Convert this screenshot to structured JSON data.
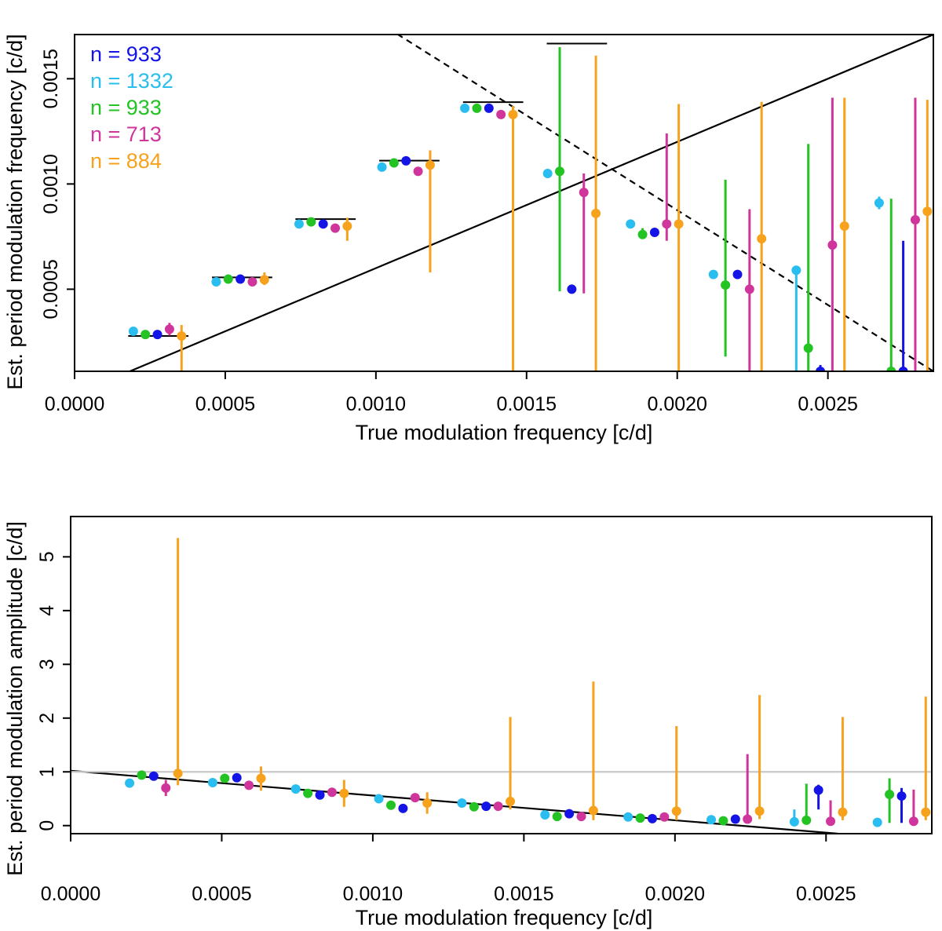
{
  "chart_data": [
    {
      "type": "scatter",
      "title": "",
      "xlabel": "True modulation frequency [c/d]",
      "ylabel": "Est. period modulation frequency [c/d]",
      "xlim": [
        0,
        0.00285
      ],
      "ylim": [
        0.00011,
        0.00171
      ],
      "xticks": [
        "0.0000",
        "0.0005",
        "0.0010",
        "0.0015",
        "0.0020",
        "0.0025"
      ],
      "xtick_values": [
        0,
        0.0005,
        0.001,
        0.0015,
        0.002,
        0.0025
      ],
      "yticks": [
        "0.0005",
        "0.0010",
        "0.0015"
      ],
      "ytick_values": [
        0.0005,
        0.001,
        0.0015
      ],
      "legend_position": "top-left",
      "legend": [
        {
          "label": "n = 933",
          "color": "#1414e6"
        },
        {
          "label": "n = 1332",
          "color": "#29bdf0"
        },
        {
          "label": "n = 933",
          "color": "#22c322"
        },
        {
          "label": "n = 713",
          "color": "#d0359c"
        },
        {
          "label": "n = 884",
          "color": "#f7a21c"
        }
      ],
      "lines": [
        {
          "style": "solid",
          "color": "#000000",
          "x": [
            0,
            0.00285
          ],
          "y": [
            0,
            0.00171
          ]
        },
        {
          "style": "dashed",
          "color": "#000000",
          "x": [
            0.00104,
            0.00285
          ],
          "y": [
            0.00174,
            0.00011
          ]
        }
      ],
      "true_markers": [
        {
          "x": 0.000278,
          "y": 0.000278
        },
        {
          "x": 0.000556,
          "y": 0.000556
        },
        {
          "x": 0.000833,
          "y": 0.000833
        },
        {
          "x": 0.001111,
          "y": 0.001111
        },
        {
          "x": 0.001389,
          "y": 0.001389
        },
        {
          "x": 0.001667,
          "y": 0.001667
        }
      ],
      "points": [
        {
          "color": "#29bdf0",
          "x": 0.000195,
          "y": 0.0003
        },
        {
          "color": "#22c322",
          "x": 0.000235,
          "y": 0.000285
        },
        {
          "color": "#1414e6",
          "x": 0.000275,
          "y": 0.000285
        },
        {
          "color": "#d0359c",
          "x": 0.000315,
          "y": 0.00031,
          "lo": 0.00028,
          "hi": 0.00034
        },
        {
          "color": "#f7a21c",
          "x": 0.000355,
          "y": 0.000278,
          "lo": 0.00011,
          "hi": 0.00033
        },
        {
          "color": "#29bdf0",
          "x": 0.00047,
          "y": 0.000535
        },
        {
          "color": "#22c322",
          "x": 0.00051,
          "y": 0.000548
        },
        {
          "color": "#1414e6",
          "x": 0.00055,
          "y": 0.000548
        },
        {
          "color": "#d0359c",
          "x": 0.00059,
          "y": 0.000535
        },
        {
          "color": "#f7a21c",
          "x": 0.00063,
          "y": 0.000545,
          "lo": 0.00052,
          "hi": 0.00058
        },
        {
          "color": "#29bdf0",
          "x": 0.000745,
          "y": 0.00081
        },
        {
          "color": "#22c322",
          "x": 0.000785,
          "y": 0.00082
        },
        {
          "color": "#1414e6",
          "x": 0.000825,
          "y": 0.00081
        },
        {
          "color": "#d0359c",
          "x": 0.000865,
          "y": 0.00079
        },
        {
          "color": "#f7a21c",
          "x": 0.000905,
          "y": 0.0008,
          "lo": 0.00073,
          "hi": 0.00084
        },
        {
          "color": "#29bdf0",
          "x": 0.00102,
          "y": 0.00108
        },
        {
          "color": "#22c322",
          "x": 0.00106,
          "y": 0.0011
        },
        {
          "color": "#1414e6",
          "x": 0.0011,
          "y": 0.00111
        },
        {
          "color": "#d0359c",
          "x": 0.00114,
          "y": 0.00106
        },
        {
          "color": "#f7a21c",
          "x": 0.00118,
          "y": 0.00109,
          "lo": 0.00058,
          "hi": 0.00116
        },
        {
          "color": "#29bdf0",
          "x": 0.001295,
          "y": 0.00136
        },
        {
          "color": "#22c322",
          "x": 0.001335,
          "y": 0.00136
        },
        {
          "color": "#1414e6",
          "x": 0.001375,
          "y": 0.00136
        },
        {
          "color": "#d0359c",
          "x": 0.001415,
          "y": 0.00133
        },
        {
          "color": "#f7a21c",
          "x": 0.001455,
          "y": 0.00133,
          "lo": 0.00011,
          "hi": 0.00137
        },
        {
          "color": "#29bdf0",
          "x": 0.00157,
          "y": 0.00105
        },
        {
          "color": "#22c322",
          "x": 0.00161,
          "y": 0.00106,
          "lo": 0.00049,
          "hi": 0.00165
        },
        {
          "color": "#1414e6",
          "x": 0.00165,
          "y": 0.0005
        },
        {
          "color": "#d0359c",
          "x": 0.00169,
          "y": 0.00096,
          "lo": 0.00048,
          "hi": 0.00105
        },
        {
          "color": "#f7a21c",
          "x": 0.00173,
          "y": 0.00086,
          "lo": 0.00011,
          "hi": 0.00161
        },
        {
          "color": "#29bdf0",
          "x": 0.001845,
          "y": 0.00081
        },
        {
          "color": "#22c322",
          "x": 0.001885,
          "y": 0.00076,
          "lo": 0.00074,
          "hi": 0.00079
        },
        {
          "color": "#1414e6",
          "x": 0.001925,
          "y": 0.00077
        },
        {
          "color": "#d0359c",
          "x": 0.001965,
          "y": 0.00081,
          "lo": 0.00073,
          "hi": 0.00124
        },
        {
          "color": "#f7a21c",
          "x": 0.002005,
          "y": 0.00081,
          "lo": 0.00011,
          "hi": 0.00138
        },
        {
          "color": "#29bdf0",
          "x": 0.00212,
          "y": 0.00057
        },
        {
          "color": "#22c322",
          "x": 0.00216,
          "y": 0.00052,
          "lo": 0.00018,
          "hi": 0.00102
        },
        {
          "color": "#1414e6",
          "x": 0.0022,
          "y": 0.00057
        },
        {
          "color": "#d0359c",
          "x": 0.00224,
          "y": 0.0005,
          "lo": 0.00011,
          "hi": 0.00088
        },
        {
          "color": "#f7a21c",
          "x": 0.00228,
          "y": 0.00074,
          "lo": 0.00011,
          "hi": 0.00139
        },
        {
          "color": "#29bdf0",
          "x": 0.002395,
          "y": 0.00059,
          "lo": 0.00011,
          "hi": 0.00059
        },
        {
          "color": "#22c322",
          "x": 0.002435,
          "y": 0.00022,
          "lo": 0.00011,
          "hi": 0.00119
        },
        {
          "color": "#1414e6",
          "x": 0.002475,
          "y": 0.00011,
          "lo": 0.00011,
          "hi": 0.00014
        },
        {
          "color": "#d0359c",
          "x": 0.002515,
          "y": 0.00071,
          "lo": 0.00011,
          "hi": 0.00141
        },
        {
          "color": "#f7a21c",
          "x": 0.002555,
          "y": 0.0008,
          "lo": 0.00011,
          "hi": 0.00141
        },
        {
          "color": "#29bdf0",
          "x": 0.00267,
          "y": 0.00091,
          "lo": 0.00088,
          "hi": 0.00094
        },
        {
          "color": "#22c322",
          "x": 0.00271,
          "y": 0.00011,
          "lo": 0.00011,
          "hi": 0.00093
        },
        {
          "color": "#1414e6",
          "x": 0.00275,
          "y": 0.00011,
          "lo": 0.00011,
          "hi": 0.00073
        },
        {
          "color": "#d0359c",
          "x": 0.00279,
          "y": 0.00083,
          "lo": 0.00011,
          "hi": 0.00141
        },
        {
          "color": "#f7a21c",
          "x": 0.00283,
          "y": 0.00087,
          "lo": 0.00011,
          "hi": 0.0014
        }
      ]
    },
    {
      "type": "scatter",
      "title": "",
      "xlabel": "True modulation frequency [c/d]",
      "ylabel": "Est. period modulation amplitude [c/d]",
      "xlim": [
        0,
        0.00285
      ],
      "ylim": [
        -0.15,
        5.75
      ],
      "xticks": [
        "0.0000",
        "0.0005",
        "0.0010",
        "0.0015",
        "0.0020",
        "0.0025"
      ],
      "xtick_values": [
        0,
        0.0005,
        0.001,
        0.0015,
        0.002,
        0.0025
      ],
      "yticks": [
        "0",
        "1",
        "2",
        "3",
        "4",
        "5"
      ],
      "ytick_values": [
        0,
        1,
        2,
        3,
        4,
        5
      ],
      "lines": [
        {
          "style": "solid",
          "color": "#000000",
          "x": [
            0,
            0.00254
          ],
          "y": [
            1.02,
            -0.15
          ]
        },
        {
          "style": "solid",
          "color": "#c8c8c8",
          "x": [
            0,
            0.00285
          ],
          "y": [
            1,
            1
          ]
        }
      ],
      "points": [
        {
          "color": "#29bdf0",
          "x": 0.000195,
          "y": 0.79
        },
        {
          "color": "#22c322",
          "x": 0.000235,
          "y": 0.94
        },
        {
          "color": "#1414e6",
          "x": 0.000275,
          "y": 0.92
        },
        {
          "color": "#d0359c",
          "x": 0.000315,
          "y": 0.7,
          "lo": 0.55,
          "hi": 0.85
        },
        {
          "color": "#f7a21c",
          "x": 0.000355,
          "y": 0.97,
          "lo": 0.75,
          "hi": 5.35
        },
        {
          "color": "#29bdf0",
          "x": 0.00047,
          "y": 0.8
        },
        {
          "color": "#22c322",
          "x": 0.00051,
          "y": 0.88
        },
        {
          "color": "#1414e6",
          "x": 0.00055,
          "y": 0.89
        },
        {
          "color": "#d0359c",
          "x": 0.00059,
          "y": 0.75
        },
        {
          "color": "#f7a21c",
          "x": 0.00063,
          "y": 0.88,
          "lo": 0.65,
          "hi": 1.1
        },
        {
          "color": "#29bdf0",
          "x": 0.000745,
          "y": 0.68
        },
        {
          "color": "#22c322",
          "x": 0.000785,
          "y": 0.6
        },
        {
          "color": "#1414e6",
          "x": 0.000825,
          "y": 0.57
        },
        {
          "color": "#d0359c",
          "x": 0.000865,
          "y": 0.62
        },
        {
          "color": "#f7a21c",
          "x": 0.000905,
          "y": 0.6,
          "lo": 0.35,
          "hi": 0.85
        },
        {
          "color": "#29bdf0",
          "x": 0.00102,
          "y": 0.5
        },
        {
          "color": "#22c322",
          "x": 0.00106,
          "y": 0.38
        },
        {
          "color": "#1414e6",
          "x": 0.0011,
          "y": 0.32
        },
        {
          "color": "#d0359c",
          "x": 0.00114,
          "y": 0.52
        },
        {
          "color": "#f7a21c",
          "x": 0.00118,
          "y": 0.42,
          "lo": 0.22,
          "hi": 0.62
        },
        {
          "color": "#29bdf0",
          "x": 0.001295,
          "y": 0.42
        },
        {
          "color": "#22c322",
          "x": 0.001335,
          "y": 0.35
        },
        {
          "color": "#1414e6",
          "x": 0.001375,
          "y": 0.36
        },
        {
          "color": "#d0359c",
          "x": 0.001415,
          "y": 0.36
        },
        {
          "color": "#f7a21c",
          "x": 0.001455,
          "y": 0.45,
          "lo": 0.3,
          "hi": 2.02
        },
        {
          "color": "#29bdf0",
          "x": 0.00157,
          "y": 0.2
        },
        {
          "color": "#22c322",
          "x": 0.00161,
          "y": 0.17
        },
        {
          "color": "#1414e6",
          "x": 0.00165,
          "y": 0.22
        },
        {
          "color": "#d0359c",
          "x": 0.00169,
          "y": 0.17
        },
        {
          "color": "#f7a21c",
          "x": 0.00173,
          "y": 0.28,
          "lo": 0.1,
          "hi": 2.68
        },
        {
          "color": "#29bdf0",
          "x": 0.001845,
          "y": 0.16
        },
        {
          "color": "#22c322",
          "x": 0.001885,
          "y": 0.14
        },
        {
          "color": "#1414e6",
          "x": 0.001925,
          "y": 0.13
        },
        {
          "color": "#d0359c",
          "x": 0.001965,
          "y": 0.16
        },
        {
          "color": "#f7a21c",
          "x": 0.002005,
          "y": 0.27,
          "lo": 0.1,
          "hi": 1.85
        },
        {
          "color": "#29bdf0",
          "x": 0.00212,
          "y": 0.11
        },
        {
          "color": "#22c322",
          "x": 0.00216,
          "y": 0.09
        },
        {
          "color": "#1414e6",
          "x": 0.0022,
          "y": 0.12
        },
        {
          "color": "#d0359c",
          "x": 0.00224,
          "y": 0.12,
          "lo": 0.05,
          "hi": 1.33
        },
        {
          "color": "#f7a21c",
          "x": 0.00228,
          "y": 0.27,
          "lo": 0.12,
          "hi": 2.43
        },
        {
          "color": "#29bdf0",
          "x": 0.002395,
          "y": 0.07,
          "lo": 0.0,
          "hi": 0.3
        },
        {
          "color": "#22c322",
          "x": 0.002435,
          "y": 0.1,
          "lo": 0.02,
          "hi": 0.78
        },
        {
          "color": "#1414e6",
          "x": 0.002475,
          "y": 0.66,
          "lo": 0.3,
          "hi": 0.76
        },
        {
          "color": "#d0359c",
          "x": 0.002515,
          "y": 0.08,
          "lo": 0.0,
          "hi": 0.47
        },
        {
          "color": "#f7a21c",
          "x": 0.002555,
          "y": 0.25,
          "lo": 0.1,
          "hi": 2.02
        },
        {
          "color": "#29bdf0",
          "x": 0.00267,
          "y": 0.06
        },
        {
          "color": "#22c322",
          "x": 0.00271,
          "y": 0.58,
          "lo": 0.05,
          "hi": 0.88
        },
        {
          "color": "#1414e6",
          "x": 0.00275,
          "y": 0.55,
          "lo": 0.05,
          "hi": 0.7
        },
        {
          "color": "#d0359c",
          "x": 0.00279,
          "y": 0.08,
          "lo": 0.0,
          "hi": 0.67
        },
        {
          "color": "#f7a21c",
          "x": 0.00283,
          "y": 0.25,
          "lo": 0.1,
          "hi": 2.4
        }
      ]
    }
  ]
}
